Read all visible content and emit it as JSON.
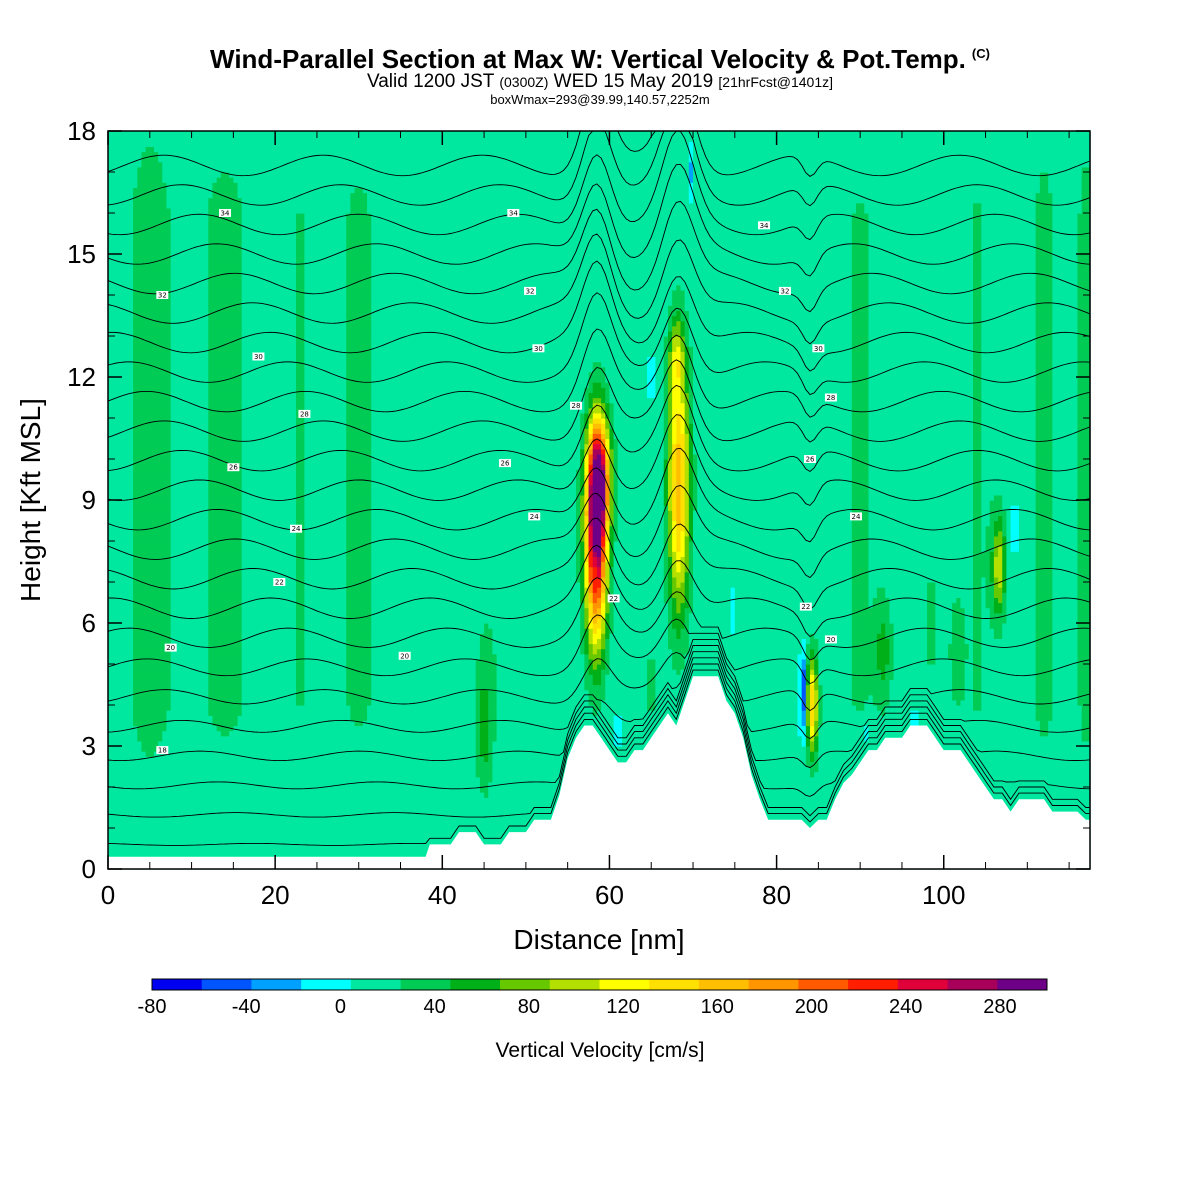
{
  "header": {
    "title": "Wind-Parallel Section at Max W: Vertical Velocity & Pot.Temp.",
    "title_mark": "(C)",
    "valid_prefix": "Valid 1200 JST",
    "valid_utc": "(0300Z)",
    "valid_date": "WED 15 May 2019",
    "forecast": "[21hrFcst@1401z]",
    "box_info": "boxWmax=293@39.99,140.57,2252m"
  },
  "chart_data": {
    "type": "heatmap",
    "xlabel": "Distance [nm]",
    "ylabel": "Height [Kft MSL]",
    "xlim": [
      0,
      117.5
    ],
    "ylim": [
      0,
      18
    ],
    "x_ticks": [
      "0",
      "20",
      "40",
      "60",
      "80",
      "100"
    ],
    "y_ticks": [
      "0",
      "3",
      "6",
      "9",
      "12",
      "15",
      "18"
    ],
    "background_value": 5,
    "updrafts": [
      {
        "x": 58.4,
        "z": 8.0,
        "sx": 1.3,
        "sz": 2.5,
        "w": 255
      },
      {
        "x": 58.8,
        "z": 9.6,
        "sx": 1.3,
        "sz": 1.4,
        "w": 170
      },
      {
        "x": 68.3,
        "z": 9.4,
        "sx": 1.3,
        "sz": 3.1,
        "w": 150
      },
      {
        "x": 68.0,
        "z": 12.5,
        "sx": 0.9,
        "sz": 0.9,
        "w": 60
      },
      {
        "x": 84.3,
        "z": 4.0,
        "sx": 0.65,
        "sz": 1.2,
        "w": 135
      },
      {
        "x": 106.6,
        "z": 7.4,
        "sx": 0.8,
        "sz": 1.2,
        "w": 85
      },
      {
        "x": 45.0,
        "z": 3.4,
        "sx": 0.9,
        "sz": 1.5,
        "w": 38
      },
      {
        "x": 92.8,
        "z": 5.3,
        "sx": 1.0,
        "sz": 1.2,
        "w": 40
      },
      {
        "x": 98.5,
        "z": 6.0,
        "sx": 0.8,
        "sz": 1.2,
        "w": 32
      },
      {
        "x": 101.5,
        "z": 5.3,
        "sx": 0.8,
        "sz": 1.2,
        "w": 30
      },
      {
        "x": 65.0,
        "z": 4.5,
        "sx": 1.0,
        "sz": 1.0,
        "w": 25
      }
    ],
    "downdrafts": [
      {
        "x": 83.1,
        "z": 4.3,
        "sx": 0.3,
        "sz": 0.9,
        "w": -95
      },
      {
        "x": 58.3,
        "z": 7.5,
        "sx": 0.25,
        "sz": 0.5,
        "w": -35
      },
      {
        "x": 69.7,
        "z": 17.0,
        "sx": 0.3,
        "sz": 0.6,
        "w": -30
      },
      {
        "x": 61.0,
        "z": 3.4,
        "sx": 0.3,
        "sz": 0.4,
        "w": -25
      },
      {
        "x": 108.5,
        "z": 8.3,
        "sx": 0.3,
        "sz": 0.6,
        "w": -30
      },
      {
        "x": 74.7,
        "z": 6.3,
        "sx": 0.3,
        "sz": 0.5,
        "w": -22
      },
      {
        "x": 96.5,
        "z": 3.5,
        "sx": 0.3,
        "sz": 0.5,
        "w": -20
      },
      {
        "x": 90.8,
        "z": 3.3,
        "sx": 0.3,
        "sz": 0.4,
        "w": -20
      },
      {
        "x": 65.0,
        "z": 12.0,
        "sx": 0.3,
        "sz": 0.6,
        "w": -20
      }
    ],
    "banding": [
      {
        "x": 5,
        "sx": 3.0,
        "w": 25
      },
      {
        "x": 14,
        "sx": 4.0,
        "w": 20
      },
      {
        "x": 23,
        "sx": 2.5,
        "w": 15
      },
      {
        "x": 30,
        "sx": 3.0,
        "w": 18
      },
      {
        "x": 46,
        "sx": 3.0,
        "w": 14
      },
      {
        "x": 53,
        "sx": 2.0,
        "w": 14
      },
      {
        "x": 80,
        "sx": 2.0,
        "w": 12
      },
      {
        "x": 90,
        "sx": 3.0,
        "w": 16
      },
      {
        "x": 104,
        "sx": 2.5,
        "w": 16
      },
      {
        "x": 112,
        "sx": 2.0,
        "w": 20
      },
      {
        "x": 117,
        "sx": 1.2,
        "w": 22
      }
    ],
    "terrain": [
      [
        0,
        0.3
      ],
      [
        38,
        0.3
      ],
      [
        38.5,
        0.6
      ],
      [
        40,
        0.6
      ],
      [
        41,
        0.6
      ],
      [
        42,
        0.9
      ],
      [
        44,
        0.9
      ],
      [
        45,
        0.6
      ],
      [
        47,
        0.6
      ],
      [
        48,
        0.9
      ],
      [
        50,
        0.9
      ],
      [
        51,
        1.2
      ],
      [
        52,
        1.2
      ],
      [
        53,
        1.2
      ],
      [
        54,
        1.8
      ],
      [
        55,
        2.7
      ],
      [
        56,
        3.2
      ],
      [
        57,
        3.5
      ],
      [
        58,
        3.5
      ],
      [
        59,
        3.2
      ],
      [
        60,
        2.9
      ],
      [
        61,
        2.6
      ],
      [
        62,
        2.6
      ],
      [
        63,
        2.9
      ],
      [
        64,
        2.9
      ],
      [
        65,
        3.2
      ],
      [
        66,
        3.5
      ],
      [
        67,
        3.8
      ],
      [
        68,
        3.5
      ],
      [
        69,
        4.1
      ],
      [
        70,
        4.7
      ],
      [
        73,
        4.7
      ],
      [
        74,
        4.1
      ],
      [
        75,
        3.8
      ],
      [
        76,
        3.2
      ],
      [
        77,
        2.3
      ],
      [
        78,
        1.7
      ],
      [
        79,
        1.2
      ],
      [
        80,
        1.2
      ],
      [
        81,
        1.2
      ],
      [
        82,
        1.2
      ],
      [
        83,
        1.2
      ],
      [
        84,
        1.0
      ],
      [
        85,
        1.2
      ],
      [
        86,
        1.2
      ],
      [
        87,
        1.7
      ],
      [
        88,
        2.1
      ],
      [
        89,
        2.3
      ],
      [
        90,
        2.6
      ],
      [
        91,
        2.9
      ],
      [
        92,
        2.9
      ],
      [
        93,
        3.2
      ],
      [
        95,
        3.2
      ],
      [
        96,
        3.5
      ],
      [
        98,
        3.5
      ],
      [
        99,
        3.2
      ],
      [
        100,
        2.9
      ],
      [
        102,
        2.9
      ],
      [
        103,
        2.6
      ],
      [
        104,
        2.3
      ],
      [
        105,
        2.0
      ],
      [
        106,
        1.7
      ],
      [
        107,
        1.7
      ],
      [
        108,
        1.4
      ],
      [
        109,
        1.7
      ],
      [
        112,
        1.7
      ],
      [
        113,
        1.4
      ],
      [
        116,
        1.4
      ],
      [
        117,
        1.2
      ],
      [
        117.5,
        1.2
      ]
    ],
    "isentrope_levels": [
      12,
      13,
      14,
      15,
      16,
      17,
      18,
      19,
      20,
      21,
      22,
      23,
      24,
      25,
      26,
      27,
      28,
      29,
      30,
      31,
      32,
      33,
      34,
      35
    ],
    "isentrope_labels": [
      {
        "text": "34",
        "x": 14,
        "z": 16.0
      },
      {
        "text": "34",
        "x": 48.5,
        "z": 16.0
      },
      {
        "text": "34",
        "x": 78.5,
        "z": 15.7
      },
      {
        "text": "32",
        "x": 6.5,
        "z": 14.0
      },
      {
        "text": "32",
        "x": 50.5,
        "z": 14.1
      },
      {
        "text": "32",
        "x": 81,
        "z": 14.1
      },
      {
        "text": "30",
        "x": 18,
        "z": 12.5
      },
      {
        "text": "30",
        "x": 51.5,
        "z": 12.7
      },
      {
        "text": "30",
        "x": 85,
        "z": 12.7
      },
      {
        "text": "28",
        "x": 23.5,
        "z": 11.1
      },
      {
        "text": "28",
        "x": 56,
        "z": 11.3
      },
      {
        "text": "28",
        "x": 86.5,
        "z": 11.5
      },
      {
        "text": "26",
        "x": 15,
        "z": 9.8
      },
      {
        "text": "26",
        "x": 47.5,
        "z": 9.9
      },
      {
        "text": "26",
        "x": 84,
        "z": 10.0
      },
      {
        "text": "24",
        "x": 22.5,
        "z": 8.3
      },
      {
        "text": "24",
        "x": 51,
        "z": 8.6
      },
      {
        "text": "24",
        "x": 89.5,
        "z": 8.6
      },
      {
        "text": "22",
        "x": 20.5,
        "z": 7.0
      },
      {
        "text": "22",
        "x": 60.5,
        "z": 6.6
      },
      {
        "text": "22",
        "x": 83.5,
        "z": 6.4
      },
      {
        "text": "20",
        "x": 7.5,
        "z": 5.4
      },
      {
        "text": "20",
        "x": 35.5,
        "z": 5.2
      },
      {
        "text": "20",
        "x": 86.5,
        "z": 5.6
      },
      {
        "text": "18",
        "x": 6.5,
        "z": 2.9
      }
    ],
    "colorbar": {
      "title": "Vertical Velocity [cm/s]",
      "min": -80,
      "max": 300,
      "step": 20,
      "tick_labels": [
        "-80",
        "-40",
        "0",
        "40",
        "80",
        "120",
        "160",
        "200",
        "240",
        "280"
      ],
      "colors": [
        "#0000f0",
        "#0055ff",
        "#00a0ff",
        "#00ffff",
        "#00e8a0",
        "#00cc55",
        "#00b018",
        "#68c800",
        "#b4e000",
        "#ffff00",
        "#ffe000",
        "#ffbe00",
        "#ff9600",
        "#ff5a00",
        "#ff1e00",
        "#e0003a",
        "#a8005a",
        "#6e0087"
      ]
    }
  }
}
